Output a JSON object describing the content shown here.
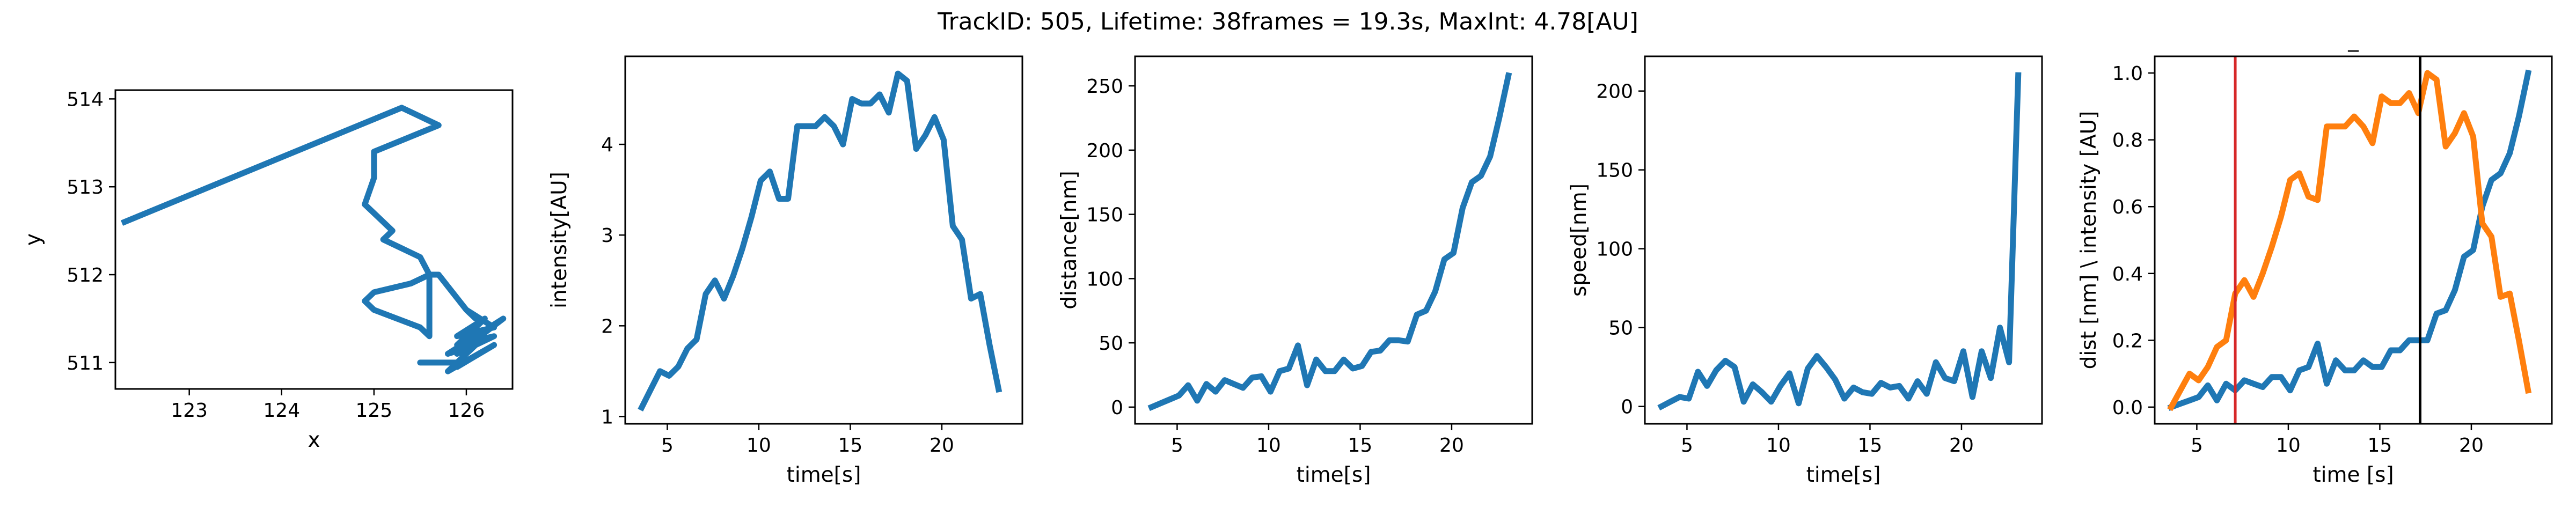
{
  "figure": {
    "suptitle": "TrackID: 505, Lifetime: 38frames = 19.3s, MaxInt: 4.78[AU]"
  },
  "colors": {
    "blue": "#1f77b4",
    "orange": "#ff7f0e",
    "red": "#d62728",
    "black": "#000000"
  },
  "chart_data": [
    {
      "type": "line",
      "title": "",
      "xlabel": "x",
      "ylabel": "y",
      "xlim": [
        122.2,
        126.5
      ],
      "ylim": [
        510.7,
        514.1
      ],
      "xticks": [
        123,
        124,
        125,
        126
      ],
      "yticks": [
        511,
        512,
        513,
        514
      ],
      "grid": false,
      "series": [
        {
          "x": [
            122.3,
            125.3,
            125.7,
            125.0,
            125.0,
            124.9,
            125.1,
            125.2,
            125.1,
            125.3,
            125.5,
            125.6,
            125.4,
            125.0,
            124.9,
            125.0,
            125.5,
            125.6,
            125.6,
            125.7,
            126.0,
            126.1,
            126.0,
            126.3,
            125.9,
            126.2,
            125.9,
            126.3,
            125.9,
            126.4,
            125.8,
            126.1,
            125.8,
            126.3,
            125.9,
            125.9,
            125.5,
            125.9
          ],
          "y": [
            512.6,
            513.9,
            513.7,
            513.4,
            513.1,
            512.8,
            512.6,
            512.5,
            512.4,
            512.3,
            512.2,
            512.0,
            511.9,
            511.8,
            511.7,
            511.6,
            511.4,
            511.3,
            512.0,
            512.0,
            511.6,
            511.5,
            511.6,
            511.4,
            511.3,
            511.5,
            511.2,
            511.3,
            511.1,
            511.5,
            511.1,
            511.2,
            510.9,
            511.2,
            510.95,
            511.0,
            511.0,
            511.0
          ]
        }
      ]
    },
    {
      "type": "line",
      "title": "",
      "xlabel": "time[s]",
      "ylabel": "intensity[AU]",
      "xlim": [
        2.7,
        24.4
      ],
      "ylim": [
        0.92,
        4.97
      ],
      "xticks": [
        5,
        10,
        15,
        20
      ],
      "yticks": [
        1,
        2,
        3,
        4
      ],
      "grid": false,
      "series": [
        {
          "x": [
            3.6,
            4.1,
            4.6,
            5.1,
            5.6,
            6.1,
            6.6,
            7.1,
            7.6,
            8.1,
            8.6,
            9.1,
            9.6,
            10.1,
            10.6,
            11.1,
            11.6,
            12.1,
            12.6,
            13.1,
            13.6,
            14.1,
            14.6,
            15.1,
            15.6,
            16.1,
            16.6,
            17.1,
            17.6,
            18.1,
            18.6,
            19.1,
            19.6,
            20.1,
            20.6,
            21.1,
            21.6,
            22.1,
            22.6,
            23.1
          ],
          "y": [
            1.1,
            1.3,
            1.5,
            1.45,
            1.55,
            1.75,
            1.85,
            2.35,
            2.5,
            2.3,
            2.55,
            2.85,
            3.2,
            3.6,
            3.7,
            3.4,
            3.4,
            4.2,
            4.2,
            4.2,
            4.3,
            4.2,
            4.0,
            4.5,
            4.45,
            4.45,
            4.55,
            4.35,
            4.78,
            4.7,
            3.95,
            4.1,
            4.3,
            4.05,
            3.1,
            2.95,
            2.3,
            2.35,
            1.8,
            1.3
          ]
        }
      ]
    },
    {
      "type": "line",
      "title": "",
      "xlabel": "time[s]",
      "ylabel": "distance[nm]",
      "xlim": [
        2.7,
        24.4
      ],
      "ylim": [
        -13,
        273
      ],
      "xticks": [
        5,
        10,
        15,
        20
      ],
      "yticks": [
        0,
        50,
        100,
        150,
        200,
        250
      ],
      "grid": false,
      "series": [
        {
          "x": [
            3.6,
            4.1,
            4.6,
            5.1,
            5.6,
            6.1,
            6.6,
            7.1,
            7.6,
            8.1,
            8.6,
            9.1,
            9.6,
            10.1,
            10.6,
            11.1,
            11.6,
            12.1,
            12.6,
            13.1,
            13.6,
            14.1,
            14.6,
            15.1,
            15.6,
            16.1,
            16.6,
            17.1,
            17.6,
            18.1,
            18.6,
            19.1,
            19.6,
            20.1,
            20.6,
            21.1,
            21.6,
            22.1,
            22.6,
            23.1
          ],
          "y": [
            0,
            3,
            6,
            9,
            17,
            5,
            18,
            12,
            21,
            18,
            15,
            23,
            24,
            12,
            28,
            30,
            48,
            17,
            37,
            28,
            28,
            37,
            30,
            32,
            43,
            44,
            52,
            52,
            51,
            72,
            75,
            90,
            115,
            120,
            155,
            175,
            180,
            195,
            225,
            258
          ]
        }
      ]
    },
    {
      "type": "line",
      "title": "",
      "xlabel": "time[s]",
      "ylabel": "speed[nm]",
      "xlim": [
        2.7,
        24.4
      ],
      "ylim": [
        -11,
        222
      ],
      "xticks": [
        5,
        10,
        15,
        20
      ],
      "yticks": [
        0,
        50,
        100,
        150,
        200
      ],
      "grid": false,
      "series": [
        {
          "x": [
            3.6,
            4.1,
            4.6,
            5.1,
            5.6,
            6.1,
            6.6,
            7.1,
            7.6,
            8.1,
            8.6,
            9.1,
            9.6,
            10.1,
            10.6,
            11.1,
            11.6,
            12.1,
            12.6,
            13.1,
            13.6,
            14.1,
            14.6,
            15.1,
            15.6,
            16.1,
            16.6,
            17.1,
            17.6,
            18.1,
            18.6,
            19.1,
            19.6,
            20.1,
            20.6,
            21.1,
            21.6,
            22.1,
            22.6,
            23.1
          ],
          "y": [
            0,
            3,
            6,
            5,
            22,
            13,
            23,
            29,
            25,
            3,
            14,
            9,
            3,
            13,
            21,
            2,
            24,
            32,
            25,
            17,
            5,
            12,
            9,
            8,
            15,
            12,
            13,
            5,
            16,
            8,
            28,
            18,
            16,
            35,
            6,
            35,
            18,
            50,
            28,
            210
          ]
        }
      ]
    },
    {
      "type": "line",
      "title": "_",
      "xlabel": "time [s]",
      "ylabel": "dist [nm] \\ intensity [AU]",
      "xlim": [
        2.7,
        24.4
      ],
      "ylim": [
        -0.05,
        1.05
      ],
      "xticks": [
        5,
        10,
        15,
        20
      ],
      "yticks": [
        0.0,
        0.2,
        0.4,
        0.6,
        0.8,
        1.0
      ],
      "grid": false,
      "vlines": [
        {
          "x": 7.1,
          "color": "#d62728"
        },
        {
          "x": 17.2,
          "color": "#000000"
        }
      ],
      "series": [
        {
          "color": "#1f77b4",
          "x": [
            3.6,
            4.1,
            4.6,
            5.1,
            5.6,
            6.1,
            6.6,
            7.1,
            7.6,
            8.1,
            8.6,
            9.1,
            9.6,
            10.1,
            10.6,
            11.1,
            11.6,
            12.1,
            12.6,
            13.1,
            13.6,
            14.1,
            14.6,
            15.1,
            15.6,
            16.1,
            16.6,
            17.1,
            17.6,
            18.1,
            18.6,
            19.1,
            19.6,
            20.1,
            20.6,
            21.1,
            21.6,
            22.1,
            22.6,
            23.1
          ],
          "y": [
            0.0,
            0.01,
            0.02,
            0.03,
            0.065,
            0.02,
            0.07,
            0.05,
            0.08,
            0.07,
            0.06,
            0.09,
            0.09,
            0.05,
            0.11,
            0.12,
            0.19,
            0.07,
            0.14,
            0.11,
            0.11,
            0.14,
            0.12,
            0.12,
            0.17,
            0.17,
            0.2,
            0.2,
            0.2,
            0.28,
            0.29,
            0.35,
            0.45,
            0.47,
            0.6,
            0.68,
            0.7,
            0.76,
            0.87,
            1.0
          ]
        },
        {
          "color": "#ff7f0e",
          "x": [
            3.6,
            4.1,
            4.6,
            5.1,
            5.6,
            6.1,
            6.6,
            7.1,
            7.6,
            8.1,
            8.6,
            9.1,
            9.6,
            10.1,
            10.6,
            11.1,
            11.6,
            12.1,
            12.6,
            13.1,
            13.6,
            14.1,
            14.6,
            15.1,
            15.6,
            16.1,
            16.6,
            17.1,
            17.6,
            18.1,
            18.6,
            19.1,
            19.6,
            20.1,
            20.6,
            21.1,
            21.6,
            22.1,
            22.6,
            23.1
          ],
          "y": [
            0.0,
            0.05,
            0.1,
            0.08,
            0.12,
            0.18,
            0.2,
            0.34,
            0.38,
            0.33,
            0.4,
            0.48,
            0.57,
            0.68,
            0.7,
            0.63,
            0.62,
            0.84,
            0.84,
            0.84,
            0.87,
            0.84,
            0.79,
            0.93,
            0.91,
            0.91,
            0.94,
            0.88,
            1.0,
            0.98,
            0.78,
            0.82,
            0.88,
            0.81,
            0.55,
            0.51,
            0.33,
            0.34,
            0.2,
            0.05
          ]
        }
      ]
    }
  ]
}
